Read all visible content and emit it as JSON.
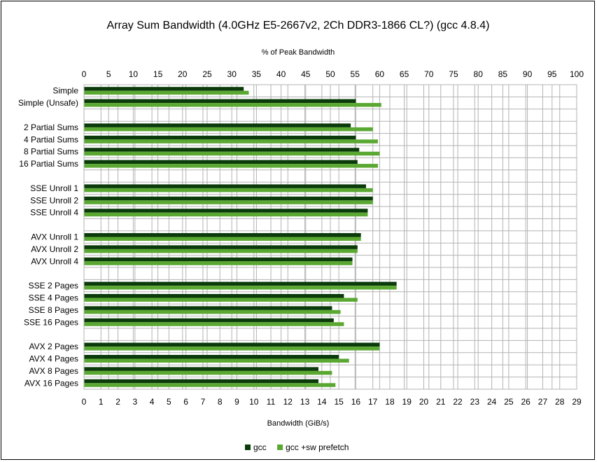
{
  "chart_data": {
    "type": "bar",
    "orientation": "horizontal",
    "title": "Array Sum Bandwidth (4.0GHz E5-2667v2, 2Ch DDR3-1866 CL?) (gcc 4.8.4)",
    "xlabel": "Bandwidth (GiB/s)",
    "x2label": "% of Peak Bandwidth",
    "xlim": [
      0,
      29
    ],
    "x2lim": [
      0,
      100
    ],
    "xticks": [
      "0",
      "1",
      "2",
      "3",
      "4",
      "5",
      "6",
      "7",
      "8",
      "9",
      "10",
      "11",
      "12",
      "13",
      "14",
      "15",
      "16",
      "17",
      "18",
      "19",
      "20",
      "21",
      "22",
      "23",
      "24",
      "25",
      "26",
      "27",
      "28",
      "29"
    ],
    "x2ticks": [
      "0",
      "5",
      "10",
      "15",
      "20",
      "25",
      "30",
      "35",
      "40",
      "45",
      "50",
      "55",
      "60",
      "65",
      "70",
      "75",
      "80",
      "85",
      "90",
      "95",
      "100"
    ],
    "grid": true,
    "legend_position": "bottom",
    "categories": [
      "Simple",
      "Simple (Unsafe)",
      "",
      "2 Partial Sums",
      "4 Partial Sums",
      "8 Partial Sums",
      "16 Partial Sums",
      "",
      "SSE Unroll 1",
      "SSE Unroll 2",
      "SSE Unroll 4",
      "",
      "AVX Unroll 1",
      "AVX Unroll 2",
      "AVX Unroll 4",
      "",
      "SSE 2 Pages",
      "SSE 4 Pages",
      "SSE 8 Pages",
      "SSE 16 Pages",
      "",
      "AVX 2 Pages",
      "AVX 4 Pages",
      "AVX 8 Pages",
      "AVX 16 Pages"
    ],
    "series": [
      {
        "name": "gcc",
        "color": "#0b3a0b",
        "values": [
          9.4,
          16.0,
          null,
          15.7,
          16.0,
          16.2,
          16.1,
          null,
          16.6,
          17.0,
          16.7,
          null,
          16.3,
          16.1,
          15.8,
          null,
          18.4,
          15.3,
          14.6,
          14.7,
          null,
          17.4,
          15.0,
          13.8,
          13.8
        ]
      },
      {
        "name": "gcc +sw prefetch",
        "color": "#5aa832",
        "values": [
          9.7,
          17.5,
          null,
          17.0,
          17.3,
          17.4,
          17.3,
          null,
          17.0,
          17.0,
          16.7,
          null,
          16.3,
          16.1,
          15.8,
          null,
          18.4,
          16.1,
          15.1,
          15.3,
          null,
          17.4,
          15.6,
          14.6,
          14.8
        ]
      }
    ]
  }
}
